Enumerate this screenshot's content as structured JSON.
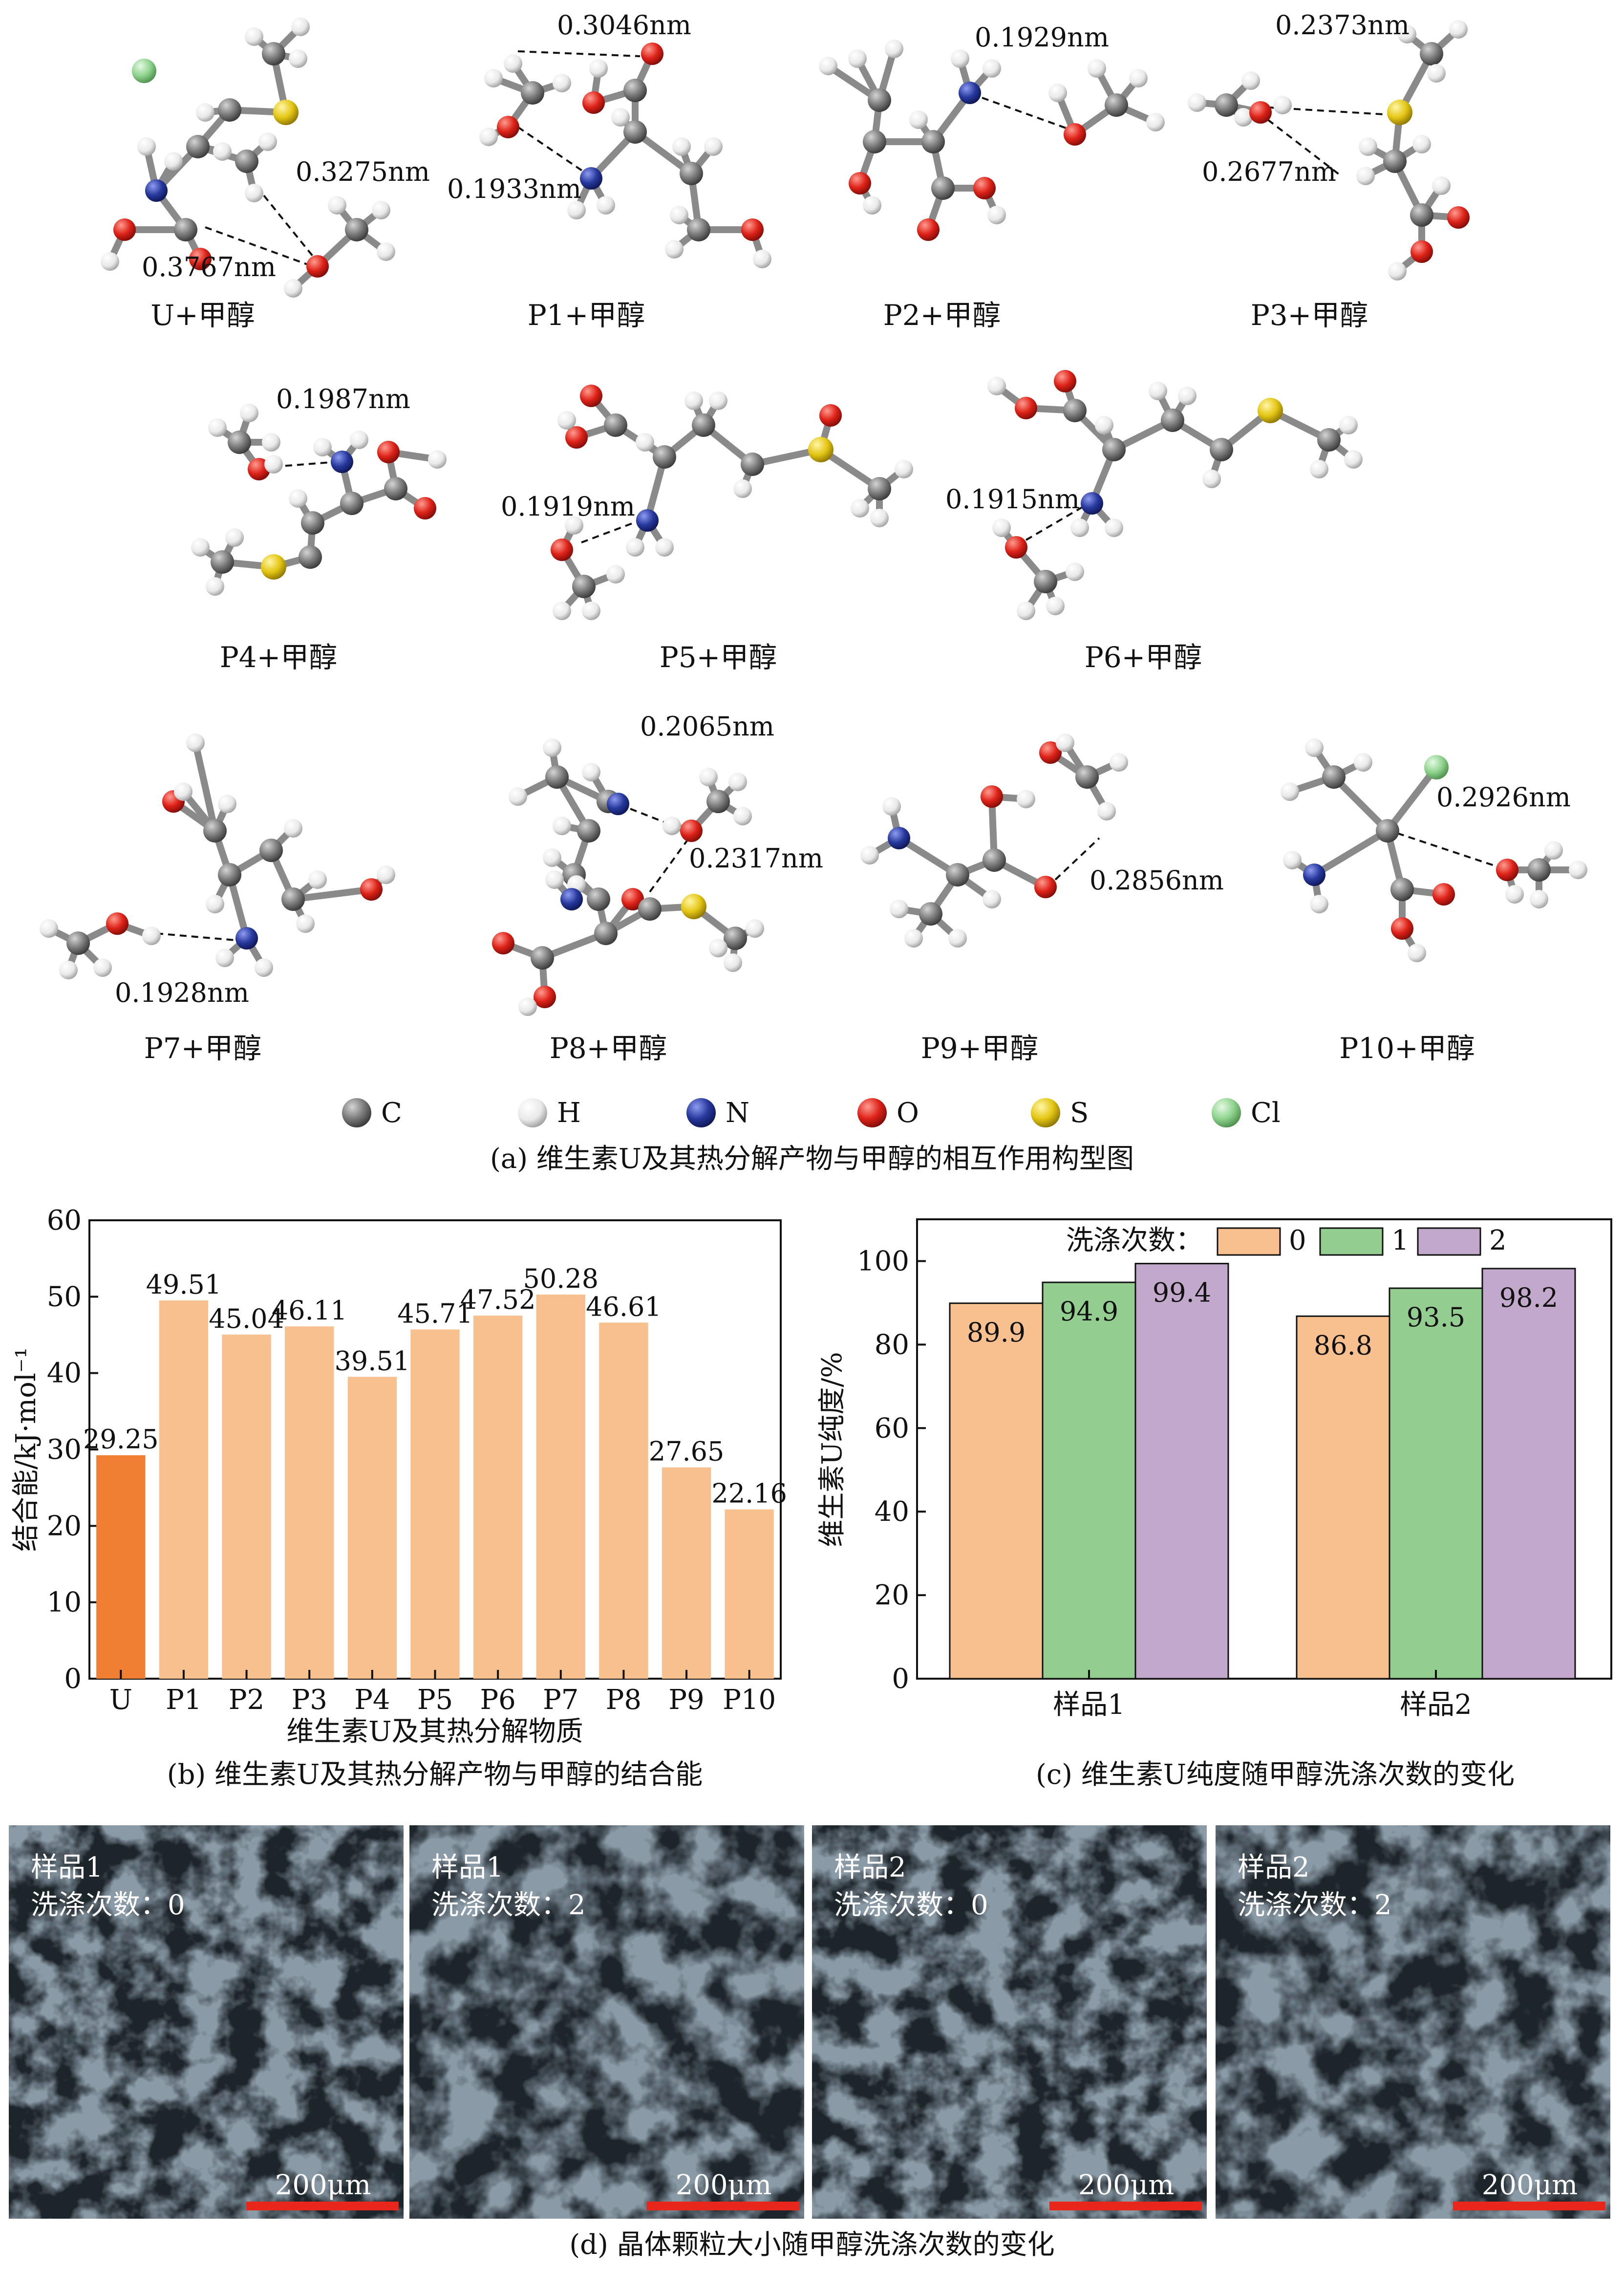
{
  "panel_a": {
    "caption": "(a) 维生素U及其热分解产物与甲醇的相互作用构型图",
    "structures": [
      {
        "label": "U+甲醇",
        "distances": [
          "0.3275nm",
          "0.3767nm"
        ]
      },
      {
        "label": "P1+甲醇",
        "distances": [
          "0.3046nm",
          "0.1933nm"
        ]
      },
      {
        "label": "P2+甲醇",
        "distances": [
          "0.1929nm"
        ]
      },
      {
        "label": "P3+甲醇",
        "distances": [
          "0.2373nm",
          "0.2677nm"
        ]
      },
      {
        "label": "P4+甲醇",
        "distances": [
          "0.1987nm"
        ]
      },
      {
        "label": "P5+甲醇",
        "distances": [
          "0.1919nm"
        ]
      },
      {
        "label": "P6+甲醇",
        "distances": [
          "0.1915nm"
        ]
      },
      {
        "label": "P7+甲醇",
        "distances": [
          "0.1928nm"
        ]
      },
      {
        "label": "P8+甲醇",
        "distances": [
          "0.2065nm",
          "0.2317nm"
        ]
      },
      {
        "label": "P9+甲醇",
        "distances": [
          "0.2856nm"
        ]
      },
      {
        "label": "P10+甲醇",
        "distances": [
          "0.2926nm"
        ]
      }
    ],
    "atom_legend": [
      {
        "symbol": "C",
        "color": "#6f6f6f"
      },
      {
        "symbol": "H",
        "color": "#eeeeee"
      },
      {
        "symbol": "N",
        "color": "#2b3a9a"
      },
      {
        "symbol": "O",
        "color": "#d9231d"
      },
      {
        "symbol": "S",
        "color": "#e0c516"
      },
      {
        "symbol": "Cl",
        "color": "#8fd38e"
      }
    ]
  },
  "chart_data": [
    {
      "type": "bar",
      "caption": "(b) 维生素U及其热分解产物与甲醇的结合能",
      "categories": [
        "U",
        "P1",
        "P2",
        "P3",
        "P4",
        "P5",
        "P6",
        "P7",
        "P8",
        "P9",
        "P10"
      ],
      "values": [
        29.25,
        49.51,
        45.04,
        46.11,
        39.51,
        45.71,
        47.52,
        50.28,
        46.61,
        27.65,
        22.16
      ],
      "value_labels": [
        "29.25",
        "49.51",
        "45.04",
        "46.11",
        "39.51",
        "45.71",
        "47.52",
        "50.28",
        "46.61",
        "27.65",
        "22.16"
      ],
      "xlabel": "维生素U及其热分解物质",
      "ylabel": "结合能/kJ·mol⁻¹",
      "ylim": [
        0,
        60
      ],
      "yticks": [
        "0",
        "10",
        "20",
        "30",
        "40",
        "50",
        "60"
      ],
      "colors": {
        "highlight": "#f07f33",
        "default": "#f9c08f"
      },
      "grid": false
    },
    {
      "type": "bar",
      "caption": "(c) 维生素U纯度随甲醇洗涤次数的变化",
      "categories": [
        "样品1",
        "样品2"
      ],
      "series": [
        {
          "name": "0",
          "values": [
            89.9,
            86.8
          ],
          "color": "#f9c08f"
        },
        {
          "name": "1",
          "values": [
            94.9,
            93.5
          ],
          "color": "#93cd90"
        },
        {
          "name": "2",
          "values": [
            99.4,
            98.2
          ],
          "color": "#c2a8ca"
        }
      ],
      "value_labels": [
        [
          "89.9",
          "94.9",
          "99.4"
        ],
        [
          "86.8",
          "93.5",
          "98.2"
        ]
      ],
      "legend_title": "洗涤次数：",
      "legend_position": "top",
      "ylabel": "维生素U纯度/%",
      "ylim": [
        0,
        110
      ],
      "yticks": [
        "0",
        "20",
        "40",
        "60",
        "80",
        "100"
      ],
      "grid": false
    }
  ],
  "panel_d": {
    "caption": "(d) 晶体颗粒大小随甲醇洗涤次数的变化",
    "images": [
      {
        "sample": "样品1",
        "wash": "洗涤次数：0",
        "scale": "200μm"
      },
      {
        "sample": "样品1",
        "wash": "洗涤次数：2",
        "scale": "200μm"
      },
      {
        "sample": "样品2",
        "wash": "洗涤次数：0",
        "scale": "200μm"
      },
      {
        "sample": "样品2",
        "wash": "洗涤次数：2",
        "scale": "200μm"
      }
    ]
  }
}
